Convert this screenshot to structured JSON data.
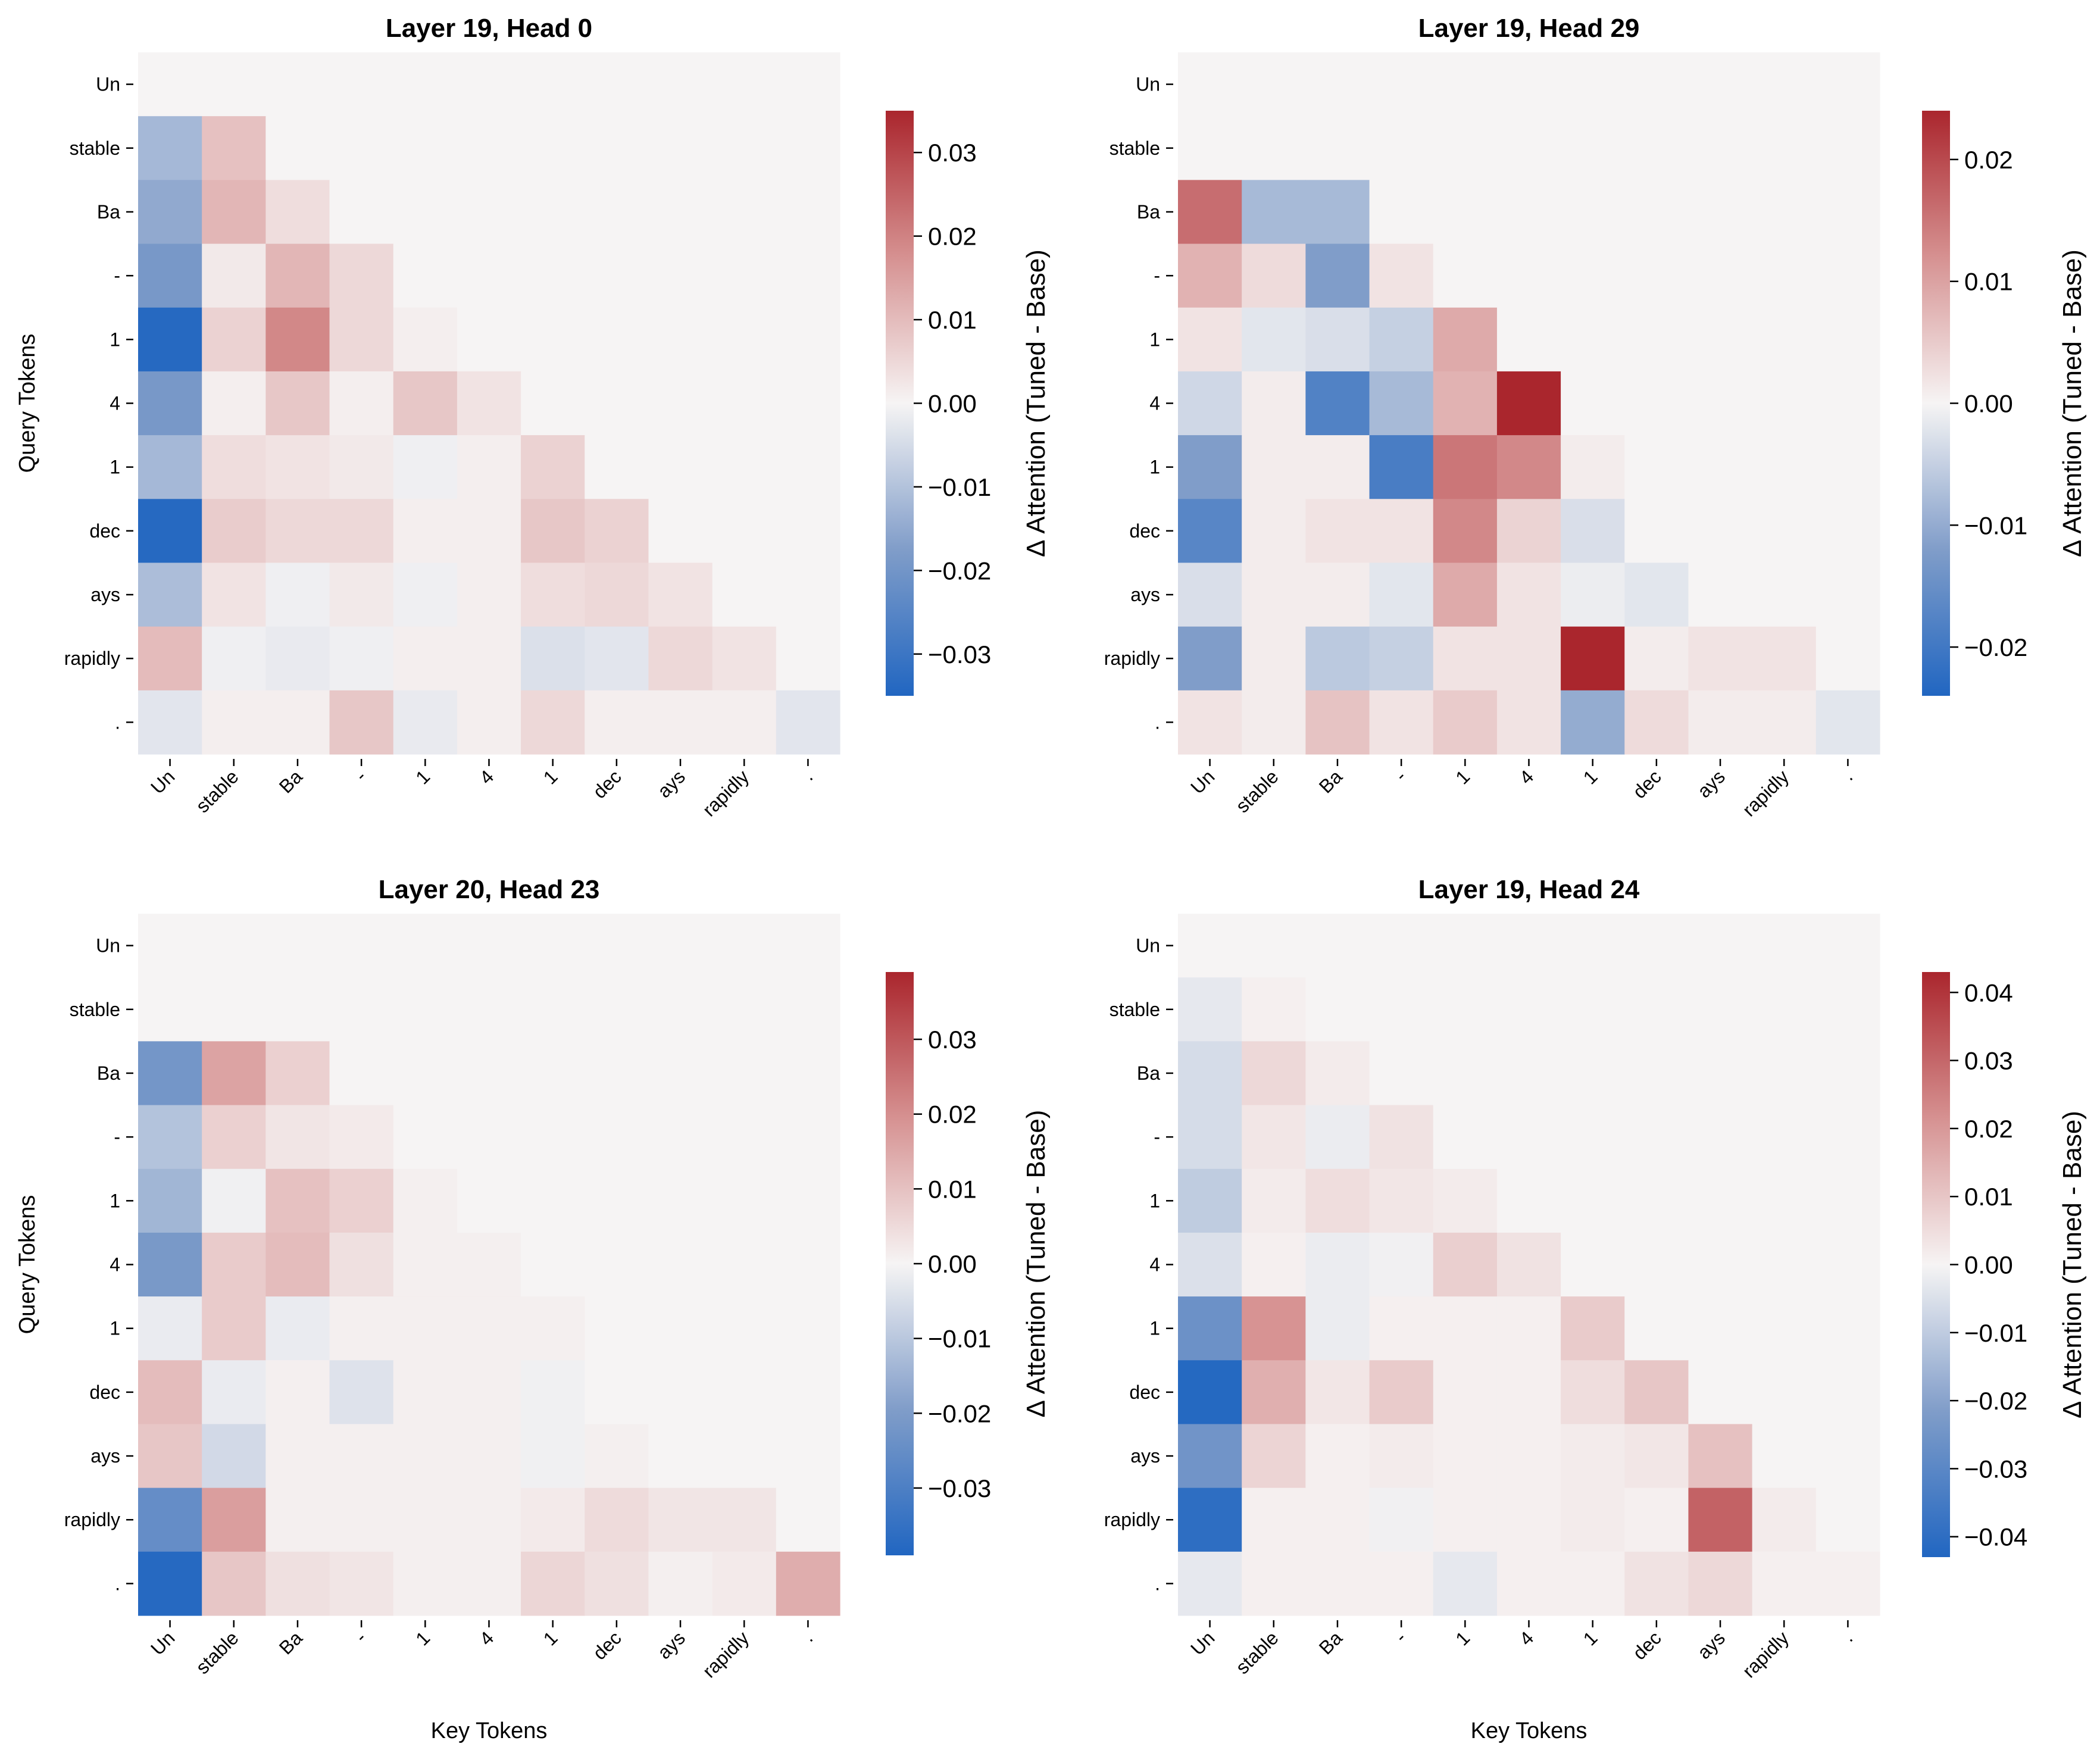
{
  "chart_data": [
    {
      "type": "heatmap",
      "title": "Layer 19, Head 0",
      "xlabel": "",
      "ylabel": "Query Tokens",
      "x_tokens": [
        "Un",
        "stable",
        "Ba",
        "-",
        "1",
        "4",
        "1",
        "dec",
        "ays",
        "rapidly",
        "."
      ],
      "y_tokens": [
        "Un",
        "stable",
        "Ba",
        "-",
        "1",
        "4",
        "1",
        "dec",
        "ays",
        "rapidly",
        "."
      ],
      "colorbar_label": "Δ Attention (Tuned - Base)",
      "vmin": -0.035,
      "vmax": 0.035,
      "colorbar_ticks": [
        "0.03",
        "0.02",
        "0.01",
        "0.00",
        "−0.01",
        "−0.02",
        "−0.03"
      ],
      "colorbar_tick_values": [
        0.03,
        0.02,
        0.01,
        0.0,
        -0.01,
        -0.02,
        -0.03
      ],
      "values": [
        [
          0,
          0,
          0,
          0,
          0,
          0,
          0,
          0,
          0,
          0,
          0
        ],
        [
          -0.012,
          0.009,
          0,
          0,
          0,
          0,
          0,
          0,
          0,
          0,
          0
        ],
        [
          -0.015,
          0.011,
          0.004,
          0,
          0,
          0,
          0,
          0,
          0,
          0,
          0
        ],
        [
          -0.019,
          0.002,
          0.011,
          0.005,
          0,
          0,
          0,
          0,
          0,
          0,
          0
        ],
        [
          -0.034,
          0.006,
          0.019,
          0.005,
          0.001,
          0,
          0,
          0,
          0,
          0,
          0
        ],
        [
          -0.019,
          0.001,
          0.008,
          0.001,
          0.008,
          0.003,
          0,
          0,
          0,
          0,
          0
        ],
        [
          -0.012,
          0.004,
          0.003,
          0.002,
          -0.001,
          0.001,
          0.006,
          0,
          0,
          0,
          0
        ],
        [
          -0.034,
          0.007,
          0.005,
          0.005,
          0.001,
          0.001,
          0.008,
          0.006,
          0,
          0,
          0
        ],
        [
          -0.011,
          0.003,
          -0.001,
          0.002,
          -0.001,
          0.001,
          0.004,
          0.005,
          0.003,
          0,
          0
        ],
        [
          0.01,
          -0.001,
          -0.002,
          -0.001,
          0.001,
          0.001,
          -0.004,
          -0.003,
          0.005,
          0.003,
          0
        ],
        [
          -0.003,
          0.001,
          0.001,
          0.008,
          -0.002,
          0.001,
          0.005,
          0.001,
          0.001,
          0.001,
          -0.003
        ]
      ]
    },
    {
      "type": "heatmap",
      "title": "Layer 19, Head 29",
      "xlabel": "",
      "ylabel": "",
      "x_tokens": [
        "Un",
        "stable",
        "Ba",
        "-",
        "1",
        "4",
        "1",
        "dec",
        "ays",
        "rapidly",
        "."
      ],
      "y_tokens": [
        "Un",
        "stable",
        "Ba",
        "-",
        "1",
        "4",
        "1",
        "dec",
        "ays",
        "rapidly",
        "."
      ],
      "colorbar_label": "Δ Attention (Tuned - Base)",
      "vmin": -0.024,
      "vmax": 0.024,
      "colorbar_ticks": [
        "0.02",
        "0.01",
        "0.00",
        "−0.01",
        "−0.02"
      ],
      "colorbar_tick_values": [
        0.02,
        0.01,
        0.0,
        -0.01,
        -0.02
      ],
      "values": [
        [
          0,
          0,
          0,
          0,
          0,
          0,
          0,
          0,
          0,
          0,
          0
        ],
        [
          0,
          0,
          0,
          0,
          0,
          0,
          0,
          0,
          0,
          0,
          0
        ],
        [
          0.016,
          -0.008,
          -0.008,
          0,
          0,
          0,
          0,
          0,
          0,
          0,
          0
        ],
        [
          0.008,
          0.003,
          -0.012,
          0.002,
          0,
          0,
          0,
          0,
          0,
          0,
          0
        ],
        [
          0.002,
          -0.002,
          -0.003,
          -0.005,
          0.009,
          0,
          0,
          0,
          0,
          0,
          0
        ],
        [
          -0.004,
          0.001,
          -0.018,
          -0.008,
          0.008,
          0.024,
          0,
          0,
          0,
          0,
          0
        ],
        [
          -0.012,
          0.001,
          0.001,
          -0.019,
          0.015,
          0.013,
          0.001,
          0,
          0,
          0,
          0
        ],
        [
          -0.017,
          0.001,
          0.002,
          0.002,
          0.013,
          0.004,
          -0.003,
          0,
          0,
          0,
          0
        ],
        [
          -0.003,
          0.001,
          0.001,
          -0.002,
          0.009,
          0.002,
          -0.001,
          -0.002,
          0,
          0,
          0
        ],
        [
          -0.012,
          0.001,
          -0.006,
          -0.005,
          0.002,
          0.002,
          0.024,
          0.001,
          0.002,
          0.002,
          0
        ],
        [
          0.002,
          0.001,
          0.006,
          0.002,
          0.005,
          0.002,
          -0.01,
          0.003,
          0.001,
          0.001,
          -0.002
        ]
      ]
    },
    {
      "type": "heatmap",
      "title": "Layer 20, Head 23",
      "xlabel": "Key Tokens",
      "ylabel": "Query Tokens",
      "x_tokens": [
        "Un",
        "stable",
        "Ba",
        "-",
        "1",
        "4",
        "1",
        "dec",
        "ays",
        "rapidly",
        "."
      ],
      "y_tokens": [
        "Un",
        "stable",
        "Ba",
        "-",
        "1",
        "4",
        "1",
        "dec",
        "ays",
        "rapidly",
        "."
      ],
      "colorbar_label": "Δ Attention (Tuned - Base)",
      "vmin": -0.039,
      "vmax": 0.039,
      "colorbar_ticks": [
        "0.03",
        "0.02",
        "0.01",
        "0.00",
        "−0.01",
        "−0.02",
        "−0.03"
      ],
      "colorbar_tick_values": [
        0.03,
        0.02,
        0.01,
        0.0,
        -0.01,
        -0.02,
        -0.03
      ],
      "values": [
        [
          0,
          0,
          0,
          0,
          0,
          0,
          0,
          0,
          0,
          0,
          0
        ],
        [
          0,
          0,
          0,
          0,
          0,
          0,
          0,
          0,
          0,
          0,
          0
        ],
        [
          -0.022,
          0.016,
          0.007,
          0,
          0,
          0,
          0,
          0,
          0,
          0,
          0
        ],
        [
          -0.011,
          0.007,
          0.003,
          0.002,
          0,
          0,
          0,
          0,
          0,
          0,
          0
        ],
        [
          -0.014,
          -0.001,
          0.01,
          0.007,
          0.001,
          0,
          0,
          0,
          0,
          0,
          0
        ],
        [
          -0.021,
          0.008,
          0.011,
          0.004,
          0.001,
          0.001,
          0,
          0,
          0,
          0,
          0
        ],
        [
          -0.002,
          0.008,
          -0.002,
          0.001,
          0.001,
          0.001,
          0.001,
          0,
          0,
          0,
          0
        ],
        [
          0.011,
          -0.002,
          0.001,
          -0.004,
          0.001,
          0.001,
          -0.001,
          0,
          0,
          0,
          0
        ],
        [
          0.009,
          -0.006,
          0.001,
          0.001,
          0.001,
          0.001,
          -0.001,
          0.001,
          0,
          0,
          0
        ],
        [
          -0.025,
          0.017,
          0.001,
          0.001,
          0.001,
          0.001,
          0.002,
          0.005,
          0.003,
          0.003,
          0
        ],
        [
          -0.038,
          0.009,
          0.004,
          0.003,
          0.001,
          0.001,
          0.006,
          0.004,
          0.001,
          0.002,
          0.014
        ]
      ]
    },
    {
      "type": "heatmap",
      "title": "Layer 19, Head 24",
      "xlabel": "Key Tokens",
      "ylabel": "",
      "x_tokens": [
        "Un",
        "stable",
        "Ba",
        "-",
        "1",
        "4",
        "1",
        "dec",
        "ays",
        "rapidly",
        "."
      ],
      "y_tokens": [
        "Un",
        "stable",
        "Ba",
        "-",
        "1",
        "4",
        "1",
        "dec",
        "ays",
        "rapidly",
        "."
      ],
      "colorbar_label": "Δ Attention (Tuned - Base)",
      "vmin": -0.043,
      "vmax": 0.043,
      "colorbar_ticks": [
        "0.04",
        "0.03",
        "0.02",
        "0.01",
        "0.00",
        "−0.01",
        "−0.02",
        "−0.03",
        "−0.04"
      ],
      "colorbar_tick_values": [
        0.04,
        0.03,
        0.02,
        0.01,
        0.0,
        -0.01,
        -0.02,
        -0.03,
        -0.04
      ],
      "values": [
        [
          0,
          0,
          0,
          0,
          0,
          0,
          0,
          0,
          0,
          0,
          0
        ],
        [
          -0.003,
          0.001,
          0,
          0,
          0,
          0,
          0,
          0,
          0,
          0,
          0
        ],
        [
          -0.006,
          0.006,
          0.002,
          0,
          0,
          0,
          0,
          0,
          0,
          0,
          0
        ],
        [
          -0.006,
          0.003,
          -0.002,
          0.004,
          0,
          0,
          0,
          0,
          0,
          0,
          0
        ],
        [
          -0.01,
          0.002,
          0.005,
          0.003,
          0.002,
          0,
          0,
          0,
          0,
          0,
          0
        ],
        [
          -0.005,
          0.001,
          -0.002,
          -0.001,
          0.008,
          0.004,
          0,
          0,
          0,
          0,
          0
        ],
        [
          -0.026,
          0.021,
          -0.002,
          0.001,
          0.001,
          0.001,
          0.009,
          0,
          0,
          0,
          0
        ],
        [
          -0.042,
          0.015,
          0.003,
          0.009,
          0.001,
          0.001,
          0.005,
          0.01,
          0,
          0,
          0
        ],
        [
          -0.025,
          0.007,
          0.001,
          0.002,
          0.001,
          0.001,
          0.002,
          0.003,
          0.011,
          0,
          0
        ],
        [
          -0.04,
          0.001,
          0.001,
          -0.001,
          0.001,
          0.001,
          0.002,
          0.001,
          0.031,
          0.002,
          0
        ],
        [
          -0.003,
          0.001,
          0.001,
          0.001,
          -0.003,
          0.001,
          0.001,
          0.004,
          0.006,
          0.001,
          0.001
        ]
      ]
    }
  ]
}
